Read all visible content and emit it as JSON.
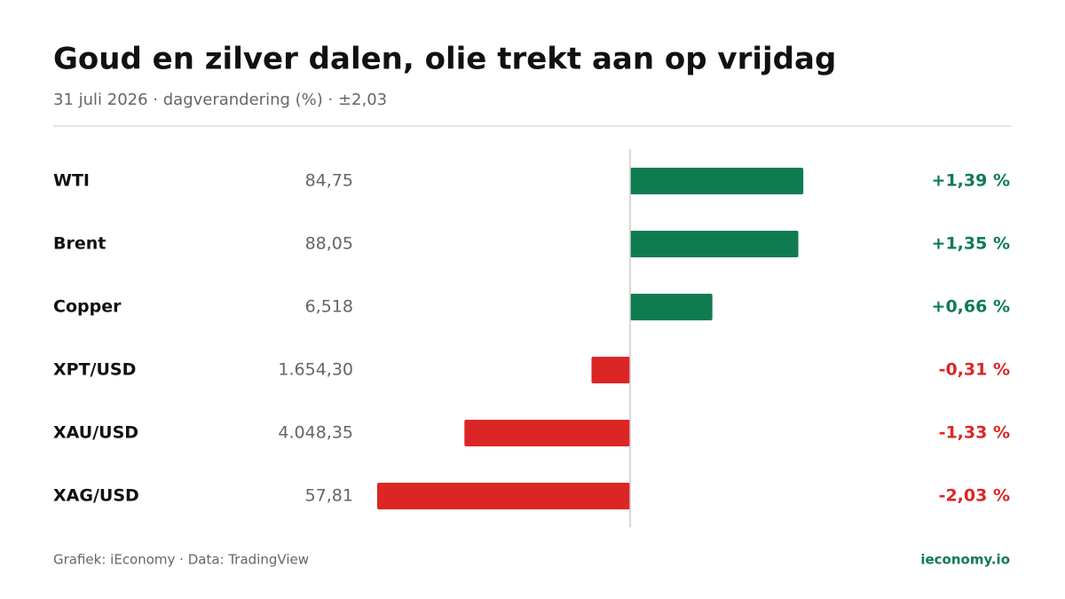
{
  "chart_data": {
    "type": "diverging-bar",
    "title": "Goud en zilver dalen, olie trekt aan op vrijdag",
    "subtitle": "31 juli 2026 · dagverandering (%) · ±2,03",
    "categories": [
      "WTI",
      "Brent",
      "Copper",
      "XPT/USD",
      "XAU/USD",
      "XAG/USD"
    ],
    "prices": [
      "84,75",
      "88,05",
      "6,518",
      "1.654,30",
      "4.048,35",
      "57,81"
    ],
    "values": [
      1.39,
      1.35,
      0.66,
      -0.31,
      -1.33,
      -2.03
    ],
    "value_labels": [
      "+1,39 %",
      "+1,35 %",
      "+0,66 %",
      "-0,31 %",
      "-1,33 %",
      "-2,03 %"
    ],
    "xlim": [
      -2.03,
      2.03
    ],
    "positive_color": "#0e7c50",
    "negative_color": "#dc2626",
    "source": "Grafiek: iEconomy · Data: TradingView",
    "brand": "ieconomy.io"
  }
}
